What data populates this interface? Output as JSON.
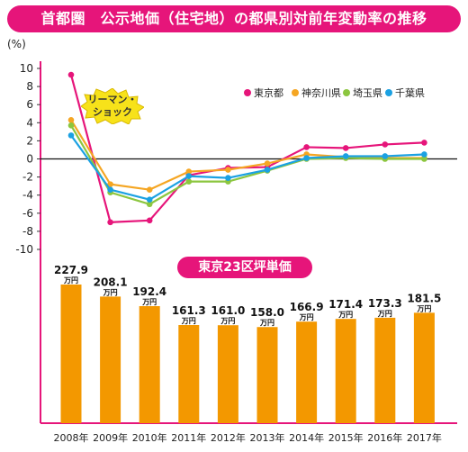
{
  "title": "首都圏　公示地価（住宅地）の都県別対前年変動率の推移",
  "callout": {
    "line1": "リーマン・",
    "line2": "ショック"
  },
  "colors": {
    "tokyo": "#e6157a",
    "kanagawa": "#f5a623",
    "saitama": "#8cc63f",
    "chiba": "#1ba1e2",
    "bar": "#f39800",
    "axis": "#e6157a"
  },
  "chart_data": [
    {
      "type": "line",
      "ylabel": "(%)",
      "ylim": [
        -10,
        10
      ],
      "yticks": [
        10,
        8,
        6,
        4,
        2,
        0,
        -2,
        -4,
        -6,
        -8,
        -10
      ],
      "categories": [
        "2008年",
        "2009年",
        "2010年",
        "2011年",
        "2012年",
        "2013年",
        "2014年",
        "2015年",
        "2016年",
        "2017年"
      ],
      "legend_position": "top-right",
      "series": [
        {
          "name": "東京都",
          "color_key": "tokyo",
          "values": [
            9.3,
            -7.0,
            -6.8,
            -1.8,
            -1.0,
            -0.9,
            1.3,
            1.2,
            1.6,
            1.8
          ]
        },
        {
          "name": "神奈川県",
          "color_key": "kanagawa",
          "values": [
            4.3,
            -2.8,
            -3.4,
            -1.4,
            -1.2,
            -0.5,
            0.5,
            0.2,
            0.1,
            0.1
          ]
        },
        {
          "name": "埼玉県",
          "color_key": "saitama",
          "values": [
            3.7,
            -3.7,
            -5.0,
            -2.5,
            -2.5,
            -1.3,
            0.0,
            0.1,
            0.0,
            0.0
          ]
        },
        {
          "name": "千葉県",
          "color_key": "chiba",
          "values": [
            2.6,
            -3.4,
            -4.5,
            -1.9,
            -2.1,
            -1.2,
            0.1,
            0.3,
            0.3,
            0.5
          ]
        }
      ]
    },
    {
      "type": "bar",
      "title": "東京23区坪単価",
      "unit": "万円",
      "categories": [
        "2008年",
        "2009年",
        "2010年",
        "2011年",
        "2012年",
        "2013年",
        "2014年",
        "2015年",
        "2016年",
        "2017年"
      ],
      "values": [
        227.9,
        208.1,
        192.4,
        161.3,
        161.0,
        158.0,
        166.9,
        171.4,
        173.3,
        181.5
      ],
      "labels": [
        "227.9",
        "208.1",
        "192.4",
        "161.3",
        "161.0",
        "158.0",
        "166.9",
        "171.4",
        "173.3",
        "181.5"
      ]
    }
  ]
}
